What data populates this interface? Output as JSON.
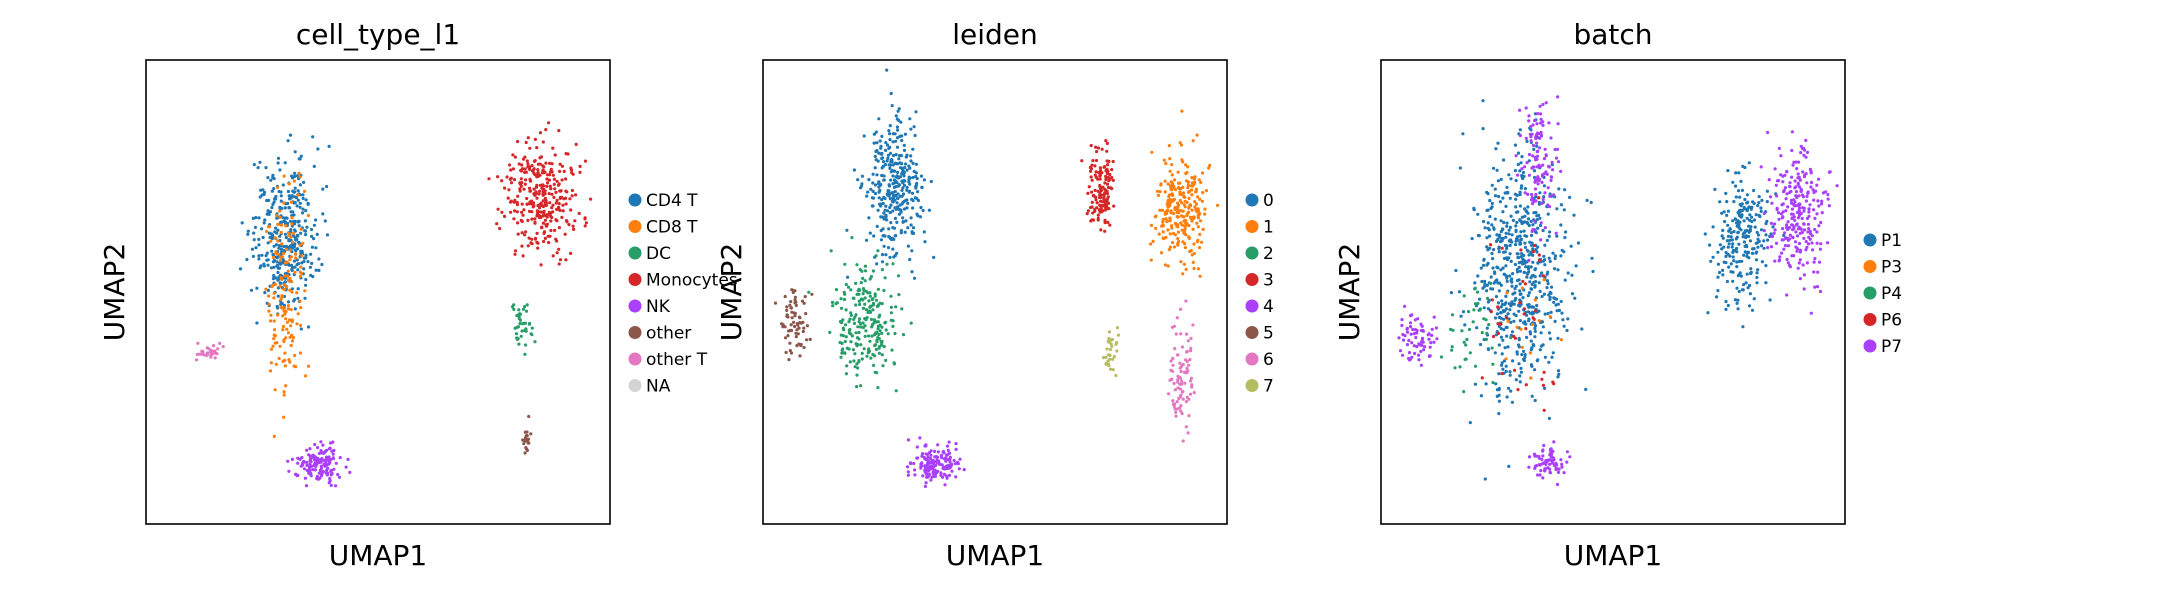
{
  "figure": {
    "background": "#ffffff"
  },
  "chart_data": [
    {
      "type": "scatter",
      "title": "cell_type_l1",
      "xlabel": "UMAP1",
      "ylabel": "UMAP2",
      "grid": false,
      "legend_placement": "right",
      "categories": [
        "CD4 T",
        "CD8 T",
        "DC",
        "Monocytes",
        "NK",
        "other",
        "other T",
        "NA"
      ],
      "colors": [
        "#1f77b4",
        "#ff7f0e",
        "#279e68",
        "#d62728",
        "#aa40fc",
        "#8c564b",
        "#e377c2",
        "#d3d3d3"
      ],
      "clusters": [
        {
          "name": "CD4 T",
          "x": 0.3,
          "y": 0.62,
          "spread": [
            0.07,
            0.16
          ],
          "count": 380
        },
        {
          "name": "CD8 T",
          "x": 0.3,
          "y": 0.52,
          "spread": [
            0.04,
            0.22
          ],
          "count": 160
        },
        {
          "name": "DC",
          "x": 0.81,
          "y": 0.43,
          "spread": [
            0.03,
            0.06
          ],
          "count": 40
        },
        {
          "name": "Monocytes",
          "x": 0.85,
          "y": 0.7,
          "spread": [
            0.08,
            0.12
          ],
          "count": 320
        },
        {
          "name": "NK",
          "x": 0.37,
          "y": 0.13,
          "spread": [
            0.05,
            0.04
          ],
          "count": 160
        },
        {
          "name": "other",
          "x": 0.82,
          "y": 0.18,
          "spread": [
            0.01,
            0.03
          ],
          "count": 20
        },
        {
          "name": "other T",
          "x": 0.13,
          "y": 0.37,
          "spread": [
            0.03,
            0.02
          ],
          "count": 30
        }
      ]
    },
    {
      "type": "scatter",
      "title": "leiden",
      "xlabel": "UMAP1",
      "ylabel": "UMAP2",
      "grid": false,
      "legend_placement": "right",
      "categories": [
        "0",
        "1",
        "2",
        "3",
        "4",
        "5",
        "6",
        "7"
      ],
      "colors": [
        "#1f77b4",
        "#ff7f0e",
        "#279e68",
        "#d62728",
        "#aa40fc",
        "#8c564b",
        "#e377c2",
        "#b5bd61"
      ],
      "clusters": [
        {
          "name": "0",
          "x": 0.28,
          "y": 0.72,
          "spread": [
            0.06,
            0.14
          ],
          "count": 340
        },
        {
          "name": "1",
          "x": 0.9,
          "y": 0.68,
          "spread": [
            0.06,
            0.12
          ],
          "count": 260
        },
        {
          "name": "2",
          "x": 0.22,
          "y": 0.43,
          "spread": [
            0.07,
            0.12
          ],
          "count": 230
        },
        {
          "name": "3",
          "x": 0.73,
          "y": 0.72,
          "spread": [
            0.03,
            0.09
          ],
          "count": 140
        },
        {
          "name": "4",
          "x": 0.37,
          "y": 0.13,
          "spread": [
            0.05,
            0.04
          ],
          "count": 160
        },
        {
          "name": "5",
          "x": 0.07,
          "y": 0.43,
          "spread": [
            0.03,
            0.07
          ],
          "count": 70
        },
        {
          "name": "6",
          "x": 0.9,
          "y": 0.33,
          "spread": [
            0.03,
            0.12
          ],
          "count": 90
        },
        {
          "name": "7",
          "x": 0.75,
          "y": 0.37,
          "spread": [
            0.02,
            0.06
          ],
          "count": 30
        }
      ]
    },
    {
      "type": "scatter",
      "title": "batch",
      "xlabel": "UMAP1",
      "ylabel": "UMAP2",
      "grid": false,
      "legend_placement": "right",
      "categories": [
        "P1",
        "P3",
        "P4",
        "P6",
        "P7"
      ],
      "colors": [
        "#1f77b4",
        "#ff7f0e",
        "#279e68",
        "#d62728",
        "#aa40fc"
      ],
      "clusters": [
        {
          "name": "P1",
          "x": 0.3,
          "y": 0.55,
          "spread": [
            0.1,
            0.26
          ],
          "count": 620
        },
        {
          "name": "P1",
          "x": 0.78,
          "y": 0.62,
          "spread": [
            0.06,
            0.14
          ],
          "count": 240
        },
        {
          "name": "P7",
          "x": 0.9,
          "y": 0.66,
          "spread": [
            0.06,
            0.14
          ],
          "count": 260
        },
        {
          "name": "P7",
          "x": 0.34,
          "y": 0.78,
          "spread": [
            0.04,
            0.14
          ],
          "count": 120
        },
        {
          "name": "P7",
          "x": 0.08,
          "y": 0.4,
          "spread": [
            0.04,
            0.05
          ],
          "count": 70
        },
        {
          "name": "P7",
          "x": 0.36,
          "y": 0.13,
          "spread": [
            0.04,
            0.04
          ],
          "count": 70
        },
        {
          "name": "P4",
          "x": 0.2,
          "y": 0.42,
          "spread": [
            0.06,
            0.1
          ],
          "count": 40
        },
        {
          "name": "P6",
          "x": 0.3,
          "y": 0.45,
          "spread": [
            0.08,
            0.22
          ],
          "count": 40
        },
        {
          "name": "P3",
          "x": 0.3,
          "y": 0.45,
          "spread": [
            0.08,
            0.22
          ],
          "count": 15
        }
      ]
    }
  ]
}
